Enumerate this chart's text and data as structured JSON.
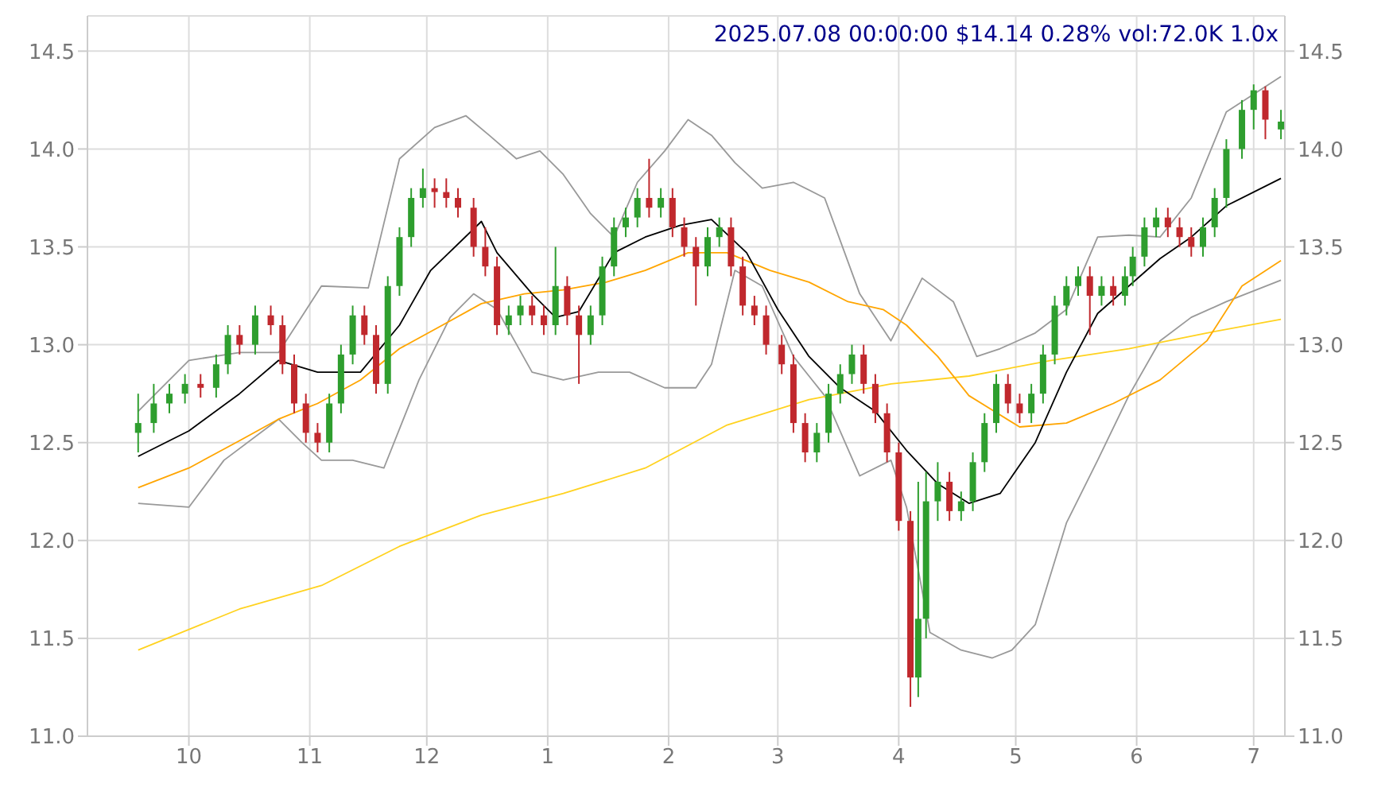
{
  "chart_data": {
    "type": "candlestick",
    "title": "2025.07.08 00:00:00 $14.14 0.28% vol:72.0K 1.0x",
    "x": [
      "2024-09-18",
      "2024-09-22",
      "2024-09-26",
      "2024-09-30",
      "2024-10-04",
      "2024-10-08",
      "2024-10-11",
      "2024-10-14",
      "2024-10-18",
      "2024-10-22",
      "2024-10-25",
      "2024-10-28",
      "2024-10-31",
      "2024-11-03",
      "2024-11-06",
      "2024-11-09",
      "2024-11-12",
      "2024-11-15",
      "2024-11-18",
      "2024-11-21",
      "2024-11-24",
      "2024-11-27",
      "2024-11-30",
      "2024-12-03",
      "2024-12-06",
      "2024-12-09",
      "2024-12-13",
      "2024-12-16",
      "2024-12-19",
      "2024-12-22",
      "2024-12-25",
      "2024-12-28",
      "2024-12-31",
      "2025-01-03",
      "2025-01-06",
      "2025-01-09",
      "2025-01-12",
      "2025-01-15",
      "2025-01-18",
      "2025-01-21",
      "2025-01-24",
      "2025-01-27",
      "2025-01-30",
      "2025-02-02",
      "2025-02-05",
      "2025-02-08",
      "2025-02-11",
      "2025-02-14",
      "2025-02-17",
      "2025-02-20",
      "2025-02-23",
      "2025-02-26",
      "2025-03-02",
      "2025-03-05",
      "2025-03-08",
      "2025-03-11",
      "2025-03-14",
      "2025-03-17",
      "2025-03-20",
      "2025-03-23",
      "2025-03-26",
      "2025-03-29",
      "2025-04-01",
      "2025-04-04",
      "2025-04-06",
      "2025-04-08",
      "2025-04-11",
      "2025-04-14",
      "2025-04-17",
      "2025-04-20",
      "2025-04-23",
      "2025-04-26",
      "2025-04-29",
      "2025-05-02",
      "2025-05-05",
      "2025-05-08",
      "2025-05-11",
      "2025-05-14",
      "2025-05-17",
      "2025-05-20",
      "2025-05-23",
      "2025-05-26",
      "2025-05-29",
      "2025-05-31",
      "2025-06-03",
      "2025-06-06",
      "2025-06-09",
      "2025-06-12",
      "2025-06-15",
      "2025-06-18",
      "2025-06-21",
      "2025-06-24",
      "2025-06-28",
      "2025-07-01",
      "2025-07-04",
      "2025-07-08"
    ],
    "series": [
      {
        "colors": [
          "#2e9e2e",
          "#2e9e2e",
          "#2e9e2e",
          "#2e9e2e",
          "#c0282d",
          "#2e9e2e",
          "#2e9e2e",
          "#c0282d",
          "#2e9e2e",
          "#c0282d",
          "#c0282d",
          "#c0282d",
          "#c0282d",
          "#c0282d",
          "#2e9e2e",
          "#2e9e2e",
          "#2e9e2e",
          "#c0282d",
          "#c0282d",
          "#2e9e2e",
          "#2e9e2e",
          "#2e9e2e",
          "#2e9e2e",
          "#c0282d",
          "#c0282d",
          "#c0282d",
          "#c0282d",
          "#c0282d",
          "#c0282d",
          "#2e9e2e",
          "#2e9e2e",
          "#c0282d",
          "#c0282d",
          "#2e9e2e",
          "#c0282d",
          "#c0282d",
          "#2e9e2e",
          "#2e9e2e",
          "#2e9e2e",
          "#2e9e2e",
          "#2e9e2e",
          "#c0282d",
          "#2e9e2e",
          "#c0282d",
          "#c0282d",
          "#c0282d",
          "#2e9e2e",
          "#2e9e2e",
          "#c0282d",
          "#c0282d",
          "#c0282d",
          "#c0282d",
          "#c0282d",
          "#c0282d",
          "#c0282d",
          "#2e9e2e",
          "#2e9e2e",
          "#2e9e2e",
          "#2e9e2e",
          "#c0282d",
          "#c0282d",
          "#c0282d",
          "#c0282d",
          "#c0282d",
          "#2e9e2e",
          "#2e9e2e",
          "#2e9e2e",
          "#c0282d",
          "#2e9e2e",
          "#2e9e2e",
          "#2e9e2e",
          "#2e9e2e",
          "#c0282d",
          "#c0282d",
          "#2e9e2e",
          "#2e9e2e",
          "#2e9e2e",
          "#2e9e2e",
          "#2e9e2e",
          "#c0282d",
          "#2e9e2e",
          "#c0282d",
          "#2e9e2e",
          "#2e9e2e",
          "#2e9e2e",
          "#2e9e2e",
          "#c0282d",
          "#c0282d",
          "#c0282d",
          "#2e9e2e",
          "#2e9e2e",
          "#2e9e2e",
          "#2e9e2e",
          "#2e9e2e",
          "#c0282d",
          "#2e9e2e"
        ],
        "ohlc": [
          [
            12.55,
            12.75,
            12.45,
            12.6
          ],
          [
            12.6,
            12.8,
            12.55,
            12.7
          ],
          [
            12.7,
            12.8,
            12.65,
            12.75
          ],
          [
            12.75,
            12.85,
            12.7,
            12.8
          ],
          [
            12.8,
            12.85,
            12.73,
            12.78
          ],
          [
            12.78,
            12.95,
            12.73,
            12.9
          ],
          [
            12.9,
            13.1,
            12.85,
            13.05
          ],
          [
            13.05,
            13.1,
            12.95,
            13.0
          ],
          [
            13.0,
            13.2,
            12.95,
            13.15
          ],
          [
            13.15,
            13.2,
            13.05,
            13.1
          ],
          [
            13.1,
            13.15,
            12.85,
            12.9
          ],
          [
            12.9,
            12.95,
            12.65,
            12.7
          ],
          [
            12.7,
            12.75,
            12.5,
            12.55
          ],
          [
            12.55,
            12.6,
            12.45,
            12.5
          ],
          [
            12.5,
            12.75,
            12.45,
            12.7
          ],
          [
            12.7,
            13.0,
            12.65,
            12.95
          ],
          [
            12.95,
            13.2,
            12.9,
            13.15
          ],
          [
            13.15,
            13.2,
            13.0,
            13.05
          ],
          [
            13.05,
            13.1,
            12.75,
            12.8
          ],
          [
            12.8,
            13.35,
            12.75,
            13.3
          ],
          [
            13.3,
            13.6,
            13.25,
            13.55
          ],
          [
            13.55,
            13.8,
            13.5,
            13.75
          ],
          [
            13.75,
            13.9,
            13.7,
            13.8
          ],
          [
            13.8,
            13.85,
            13.7,
            13.78
          ],
          [
            13.78,
            13.85,
            13.7,
            13.75
          ],
          [
            13.75,
            13.8,
            13.65,
            13.7
          ],
          [
            13.7,
            13.75,
            13.45,
            13.5
          ],
          [
            13.5,
            13.6,
            13.35,
            13.4
          ],
          [
            13.4,
            13.45,
            13.05,
            13.1
          ],
          [
            13.1,
            13.2,
            13.05,
            13.15
          ],
          [
            13.15,
            13.25,
            13.1,
            13.2
          ],
          [
            13.2,
            13.25,
            13.1,
            13.15
          ],
          [
            13.15,
            13.2,
            13.05,
            13.1
          ],
          [
            13.1,
            13.5,
            13.05,
            13.3
          ],
          [
            13.3,
            13.35,
            13.1,
            13.15
          ],
          [
            13.15,
            13.2,
            12.8,
            13.05
          ],
          [
            13.05,
            13.2,
            13.0,
            13.15
          ],
          [
            13.15,
            13.45,
            13.1,
            13.4
          ],
          [
            13.4,
            13.65,
            13.35,
            13.6
          ],
          [
            13.6,
            13.7,
            13.55,
            13.65
          ],
          [
            13.65,
            13.8,
            13.6,
            13.75
          ],
          [
            13.75,
            13.95,
            13.65,
            13.7
          ],
          [
            13.7,
            13.8,
            13.65,
            13.75
          ],
          [
            13.75,
            13.8,
            13.55,
            13.6
          ],
          [
            13.6,
            13.65,
            13.45,
            13.5
          ],
          [
            13.5,
            13.55,
            13.2,
            13.4
          ],
          [
            13.4,
            13.6,
            13.35,
            13.55
          ],
          [
            13.55,
            13.65,
            13.5,
            13.6
          ],
          [
            13.6,
            13.65,
            13.35,
            13.4
          ],
          [
            13.4,
            13.45,
            13.15,
            13.2
          ],
          [
            13.2,
            13.25,
            13.1,
            13.15
          ],
          [
            13.15,
            13.2,
            12.95,
            13.0
          ],
          [
            13.0,
            13.05,
            12.85,
            12.9
          ],
          [
            12.9,
            12.95,
            12.55,
            12.6
          ],
          [
            12.6,
            12.65,
            12.4,
            12.45
          ],
          [
            12.45,
            12.6,
            12.4,
            12.55
          ],
          [
            12.55,
            12.8,
            12.5,
            12.75
          ],
          [
            12.75,
            12.9,
            12.7,
            12.85
          ],
          [
            12.85,
            13.0,
            12.8,
            12.95
          ],
          [
            12.95,
            13.0,
            12.75,
            12.8
          ],
          [
            12.8,
            12.85,
            12.6,
            12.65
          ],
          [
            12.65,
            12.7,
            12.4,
            12.45
          ],
          [
            12.45,
            12.5,
            12.05,
            12.1
          ],
          [
            12.1,
            12.15,
            11.15,
            11.3
          ],
          [
            11.3,
            12.3,
            11.2,
            11.6
          ],
          [
            11.6,
            12.35,
            11.5,
            12.2
          ],
          [
            12.2,
            12.4,
            12.1,
            12.3
          ],
          [
            12.3,
            12.35,
            12.1,
            12.15
          ],
          [
            12.15,
            12.25,
            12.1,
            12.2
          ],
          [
            12.2,
            12.45,
            12.15,
            12.4
          ],
          [
            12.4,
            12.65,
            12.35,
            12.6
          ],
          [
            12.6,
            12.85,
            12.55,
            12.8
          ],
          [
            12.8,
            12.85,
            12.65,
            12.7
          ],
          [
            12.7,
            12.75,
            12.6,
            12.65
          ],
          [
            12.65,
            12.8,
            12.6,
            12.75
          ],
          [
            12.75,
            13.0,
            12.7,
            12.95
          ],
          [
            12.95,
            13.25,
            12.9,
            13.2
          ],
          [
            13.2,
            13.35,
            13.15,
            13.3
          ],
          [
            13.3,
            13.4,
            13.25,
            13.35
          ],
          [
            13.35,
            13.4,
            13.05,
            13.25
          ],
          [
            13.25,
            13.35,
            13.2,
            13.3
          ],
          [
            13.3,
            13.35,
            13.2,
            13.25
          ],
          [
            13.25,
            13.4,
            13.2,
            13.35
          ],
          [
            13.35,
            13.5,
            13.3,
            13.45
          ],
          [
            13.45,
            13.65,
            13.4,
            13.6
          ],
          [
            13.6,
            13.7,
            13.55,
            13.65
          ],
          [
            13.65,
            13.7,
            13.55,
            13.6
          ],
          [
            13.6,
            13.65,
            13.5,
            13.55
          ],
          [
            13.55,
            13.6,
            13.45,
            13.5
          ],
          [
            13.5,
            13.65,
            13.45,
            13.6
          ],
          [
            13.6,
            13.8,
            13.55,
            13.75
          ],
          [
            13.75,
            14.05,
            13.7,
            14.0
          ],
          [
            14.0,
            14.25,
            13.95,
            14.2
          ],
          [
            14.2,
            14.33,
            14.1,
            14.3
          ],
          [
            14.3,
            14.32,
            14.05,
            14.15
          ],
          [
            14.1,
            14.2,
            14.05,
            14.14
          ]
        ]
      },
      {
        "type": "line",
        "color": "#999999",
        "x": [
          "2024-09-18",
          "2024-10-01",
          "2024-10-14",
          "2024-10-24",
          "2024-11-04",
          "2024-11-16",
          "2024-11-24",
          "2024-12-03",
          "2024-12-11",
          "2024-12-17",
          "2024-12-24",
          "2024-12-30",
          "2025-01-05",
          "2025-01-12",
          "2025-01-18",
          "2025-01-24",
          "2025-01-31",
          "2025-02-06",
          "2025-02-12",
          "2025-02-18",
          "2025-02-25",
          "2025-03-05",
          "2025-03-13",
          "2025-03-22",
          "2025-03-30",
          "2025-04-07",
          "2025-04-15",
          "2025-04-21",
          "2025-04-27",
          "2025-05-06",
          "2025-05-14",
          "2025-05-22",
          "2025-05-30",
          "2025-06-07",
          "2025-06-15",
          "2025-06-24",
          "2025-07-08"
        ],
        "values": [
          12.66,
          12.92,
          12.96,
          12.96,
          13.3,
          13.29,
          13.95,
          14.11,
          14.17,
          14.07,
          13.95,
          13.99,
          13.87,
          13.67,
          13.55,
          13.83,
          13.99,
          14.15,
          14.07,
          13.93,
          13.8,
          13.83,
          13.75,
          13.26,
          13.02,
          13.34,
          13.22,
          12.94,
          12.98,
          13.06,
          13.18,
          13.55,
          13.56,
          13.55,
          13.75,
          14.19,
          14.37
        ]
      },
      {
        "type": "line",
        "color": "#999999",
        "x": [
          "2024-09-18",
          "2024-10-01",
          "2024-10-10",
          "2024-10-24",
          "2024-10-30",
          "2024-11-04",
          "2024-11-12",
          "2024-11-20",
          "2024-11-29",
          "2024-12-07",
          "2024-12-13",
          "2024-12-19",
          "2024-12-28",
          "2025-01-05",
          "2025-01-14",
          "2025-01-22",
          "2025-01-31",
          "2025-02-08",
          "2025-02-12",
          "2025-02-18",
          "2025-02-25",
          "2025-03-05",
          "2025-03-13",
          "2025-03-22",
          "2025-03-30",
          "2025-04-03",
          "2025-04-09",
          "2025-04-17",
          "2025-04-25",
          "2025-04-30",
          "2025-05-06",
          "2025-05-14",
          "2025-05-22",
          "2025-05-30",
          "2025-06-07",
          "2025-06-15",
          "2025-06-24",
          "2025-07-08"
        ],
        "values": [
          12.19,
          12.17,
          12.41,
          12.62,
          12.5,
          12.41,
          12.41,
          12.37,
          12.82,
          13.14,
          13.26,
          13.18,
          12.86,
          12.82,
          12.86,
          12.86,
          12.78,
          12.78,
          12.9,
          13.38,
          13.3,
          12.94,
          12.74,
          12.33,
          12.41,
          12.17,
          11.53,
          11.44,
          11.4,
          11.44,
          11.57,
          12.09,
          12.41,
          12.74,
          13.02,
          13.14,
          13.22,
          13.33
        ]
      },
      {
        "type": "line",
        "color": "#ffd21f",
        "x": [
          "2024-09-18",
          "2024-10-14",
          "2024-11-04",
          "2024-11-24",
          "2024-12-15",
          "2025-01-05",
          "2025-01-26",
          "2025-02-16",
          "2025-03-09",
          "2025-03-30",
          "2025-04-19",
          "2025-05-10",
          "2025-05-30",
          "2025-06-19",
          "2025-07-08"
        ],
        "values": [
          11.44,
          11.65,
          11.77,
          11.97,
          12.13,
          12.24,
          12.37,
          12.59,
          12.72,
          12.8,
          12.84,
          12.92,
          12.98,
          13.06,
          13.13
        ]
      },
      {
        "type": "line",
        "color": "#ffa500",
        "x": [
          "2024-09-18",
          "2024-10-01",
          "2024-10-14",
          "2024-10-24",
          "2024-11-03",
          "2024-11-14",
          "2024-11-24",
          "2024-12-05",
          "2024-12-15",
          "2024-12-26",
          "2025-01-05",
          "2025-01-16",
          "2025-01-26",
          "2025-02-06",
          "2025-02-16",
          "2025-02-27",
          "2025-03-09",
          "2025-03-19",
          "2025-03-28",
          "2025-04-03",
          "2025-04-11",
          "2025-04-19",
          "2025-05-02",
          "2025-05-14",
          "2025-05-26",
          "2025-06-07",
          "2025-06-19",
          "2025-06-28",
          "2025-07-08"
        ],
        "values": [
          12.27,
          12.37,
          12.51,
          12.62,
          12.7,
          12.82,
          12.98,
          13.1,
          13.21,
          13.26,
          13.28,
          13.32,
          13.38,
          13.47,
          13.47,
          13.38,
          13.32,
          13.22,
          13.18,
          13.1,
          12.94,
          12.74,
          12.58,
          12.6,
          12.7,
          12.82,
          13.02,
          13.3,
          13.43
        ]
      },
      {
        "type": "line",
        "color": "#000000",
        "x": [
          "2024-09-18",
          "2024-10-01",
          "2024-10-14",
          "2024-10-24",
          "2024-11-03",
          "2024-11-14",
          "2024-11-24",
          "2024-12-02",
          "2024-12-15",
          "2024-12-19",
          "2024-12-28",
          "2025-01-03",
          "2025-01-09",
          "2025-01-18",
          "2025-01-26",
          "2025-02-04",
          "2025-02-12",
          "2025-02-21",
          "2025-03-01",
          "2025-03-09",
          "2025-03-17",
          "2025-03-26",
          "2025-04-03",
          "2025-04-11",
          "2025-04-19",
          "2025-04-27",
          "2025-05-06",
          "2025-05-14",
          "2025-05-22",
          "2025-05-30",
          "2025-06-07",
          "2025-06-15",
          "2025-06-24",
          "2025-07-08"
        ],
        "values": [
          12.43,
          12.56,
          12.75,
          12.92,
          12.86,
          12.86,
          13.1,
          13.38,
          13.63,
          13.47,
          13.26,
          13.14,
          13.17,
          13.47,
          13.55,
          13.61,
          13.64,
          13.47,
          13.18,
          12.94,
          12.78,
          12.66,
          12.46,
          12.29,
          12.19,
          12.24,
          12.5,
          12.86,
          13.16,
          13.3,
          13.44,
          13.55,
          13.71,
          13.85
        ]
      }
    ],
    "xlim": [
      "2024-09-05",
      "2025-07-09"
    ],
    "xticks": [
      {
        "value": "2024-10-01",
        "label": "10"
      },
      {
        "value": "2024-11-01",
        "label": "11"
      },
      {
        "value": "2024-12-01",
        "label": "12"
      },
      {
        "value": "2025-01-01",
        "label": "1"
      },
      {
        "value": "2025-02-01",
        "label": "2"
      },
      {
        "value": "2025-03-01",
        "label": "3"
      },
      {
        "value": "2025-04-01",
        "label": "4"
      },
      {
        "value": "2025-05-01",
        "label": "5"
      },
      {
        "value": "2025-06-01",
        "label": "6"
      },
      {
        "value": "2025-07-01",
        "label": "7"
      }
    ],
    "ylim": [
      11,
      14.68
    ],
    "yticks": [
      {
        "value": 11,
        "label": "11.0"
      },
      {
        "value": 11.5,
        "label": "11.5"
      },
      {
        "value": 12,
        "label": "12.0"
      },
      {
        "value": 12.5,
        "label": "12.5"
      },
      {
        "value": 13,
        "label": "13.0"
      },
      {
        "value": 13.5,
        "label": "13.5"
      },
      {
        "value": 14,
        "label": "14.0"
      },
      {
        "value": 14.5,
        "label": "14.5"
      }
    ],
    "y2lim": [
      11,
      14.68
    ],
    "y2ticks": [
      {
        "value": 11,
        "label": "11.0"
      },
      {
        "value": 11.5,
        "label": "11.5"
      },
      {
        "value": 12,
        "label": "12.0"
      },
      {
        "value": 12.5,
        "label": "12.5"
      },
      {
        "value": 13,
        "label": "13.0"
      },
      {
        "value": 13.5,
        "label": "13.5"
      },
      {
        "value": 14,
        "label": "14.0"
      },
      {
        "value": 14.5,
        "label": "14.5"
      }
    ],
    "grid": true,
    "legend": false
  }
}
